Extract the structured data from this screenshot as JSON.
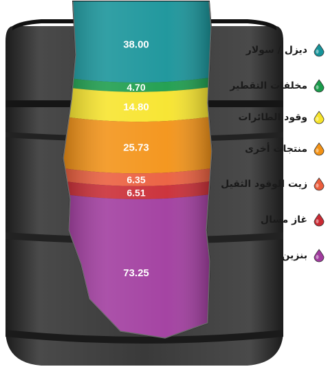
{
  "chart_data": {
    "type": "bar",
    "categories": [
      "ديزل / سولار",
      "مخلفات التقطير",
      "وقود الطائرات",
      "منتجات أخرى",
      "زيت الوقود الثقيل",
      "غاز مسال",
      "بنزين"
    ],
    "values": [
      38.0,
      4.7,
      14.8,
      25.73,
      6.35,
      6.51,
      73.25
    ],
    "value_labels": [
      "38.00",
      "4.70",
      "14.80",
      "25.73",
      "6.35",
      "6.51",
      "73.25"
    ],
    "stacked": true,
    "legend_position": "right",
    "colors": [
      "#169399",
      "#1a9c4b",
      "#f7e42a",
      "#f39215",
      "#eb5d3c",
      "#c92a33",
      "#a03a9e"
    ]
  }
}
